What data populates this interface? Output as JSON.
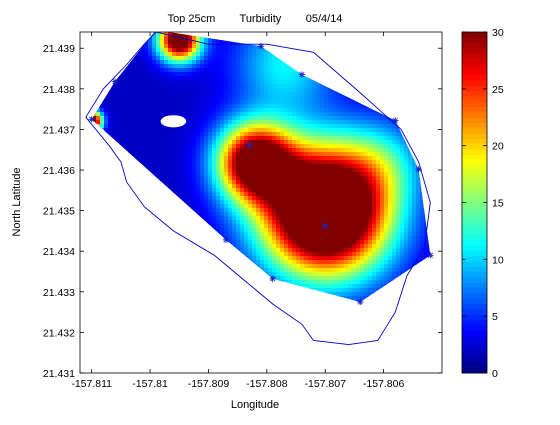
{
  "chart_data": {
    "type": "heatmap",
    "title": "Top 25cm        Turbidity        05/4/14",
    "xlabel": "Longitude",
    "ylabel": "North Latitude",
    "xlim": [
      -157.8112,
      -157.805
    ],
    "ylim": [
      21.431,
      21.4394
    ],
    "x_ticks": [
      {
        "value": -157.811,
        "label": "-157.811"
      },
      {
        "value": -157.81,
        "label": "-157.81"
      },
      {
        "value": -157.809,
        "label": "-157.809"
      },
      {
        "value": -157.808,
        "label": "-157.808"
      },
      {
        "value": -157.807,
        "label": "-157.807"
      },
      {
        "value": -157.806,
        "label": "-157.806"
      }
    ],
    "y_ticks": [
      {
        "value": 21.431,
        "label": "21.431"
      },
      {
        "value": 21.432,
        "label": "21.432"
      },
      {
        "value": 21.433,
        "label": "21.433"
      },
      {
        "value": 21.434,
        "label": "21.434"
      },
      {
        "value": 21.435,
        "label": "21.435"
      },
      {
        "value": 21.436,
        "label": "21.436"
      },
      {
        "value": 21.437,
        "label": "21.437"
      },
      {
        "value": 21.438,
        "label": "21.438"
      },
      {
        "value": 21.439,
        "label": "21.439"
      }
    ],
    "colorbar": {
      "range": [
        0,
        30
      ],
      "colormap": "jet",
      "ticks": [
        {
          "value": 0,
          "label": "0"
        },
        {
          "value": 5,
          "label": "5"
        },
        {
          "value": 10,
          "label": "10"
        },
        {
          "value": 15,
          "label": "15"
        },
        {
          "value": 20,
          "label": "20"
        },
        {
          "value": 25,
          "label": "25"
        },
        {
          "value": 30,
          "label": "30"
        }
      ]
    },
    "sample_points": [
      {
        "x": -157.8099,
        "y": 21.43945
      },
      {
        "x": -157.8081,
        "y": 21.43905
      },
      {
        "x": -157.8074,
        "y": 21.43835
      },
      {
        "x": -157.8058,
        "y": 21.43722
      },
      {
        "x": -157.8054,
        "y": 21.43602
      },
      {
        "x": -157.8052,
        "y": 21.4339
      },
      {
        "x": -157.8064,
        "y": 21.43275
      },
      {
        "x": -157.8079,
        "y": 21.43332
      },
      {
        "x": -157.8087,
        "y": 21.43428
      },
      {
        "x": -157.811,
        "y": 21.43725
      },
      {
        "x": -157.8106,
        "y": 21.43818
      },
      {
        "x": -157.8083,
        "y": 21.43662
      },
      {
        "x": -157.807,
        "y": 21.43462
      }
    ],
    "field_peaks": [
      {
        "x": -157.807,
        "y": 21.435,
        "value": 45,
        "spread": 0.00075
      },
      {
        "x": -157.8082,
        "y": 21.4362,
        "value": 32,
        "spread": 0.00045
      },
      {
        "x": -157.811,
        "y": 21.4372,
        "value": 36,
        "spread": 0.00012
      },
      {
        "x": -157.8095,
        "y": 21.4392,
        "value": 34,
        "spread": 0.00025
      },
      {
        "x": -157.8077,
        "y": 21.4386,
        "value": 9,
        "spread": 0.0006
      },
      {
        "x": -157.806,
        "y": 21.4362,
        "value": 6,
        "spread": 0.0005
      }
    ],
    "field_base": 2,
    "interpolation_hull": [
      [
        -157.8099,
        21.43945
      ],
      [
        -157.8081,
        21.43905
      ],
      [
        -157.8074,
        21.43835
      ],
      [
        -157.8058,
        21.43722
      ],
      [
        -157.8054,
        21.43602
      ],
      [
        -157.8052,
        21.4339
      ],
      [
        -157.8064,
        21.43275
      ],
      [
        -157.8079,
        21.43332
      ],
      [
        -157.8087,
        21.43428
      ],
      [
        -157.811,
        21.43725
      ],
      [
        -157.8106,
        21.43818
      ]
    ],
    "island_hole": {
      "x": -157.8096,
      "y": 21.4372,
      "rx": 0.00022,
      "ry": 0.00015
    },
    "shoreline": [
      [
        -157.8099,
        21.4394
      ],
      [
        -157.809,
        21.4391
      ],
      [
        -157.808,
        21.4391
      ],
      [
        -157.8072,
        21.4389
      ],
      [
        -157.8064,
        21.4379
      ],
      [
        -157.8057,
        21.437
      ],
      [
        -157.8054,
        21.4362
      ],
      [
        -157.8052,
        21.4352
      ],
      [
        -157.8053,
        21.4341
      ],
      [
        -157.8056,
        21.4334
      ],
      [
        -157.8058,
        21.4325
      ],
      [
        -157.8061,
        21.4318
      ],
      [
        -157.8066,
        21.4317
      ],
      [
        -157.8072,
        21.4318
      ],
      [
        -157.8074,
        21.4322
      ],
      [
        -157.8079,
        21.4327
      ],
      [
        -157.8084,
        21.4333
      ],
      [
        -157.8089,
        21.4339
      ],
      [
        -157.8096,
        21.4345
      ],
      [
        -157.8101,
        21.4351
      ],
      [
        -157.8104,
        21.4357
      ],
      [
        -157.8105,
        21.4362
      ],
      [
        -157.8107,
        21.4366
      ],
      [
        -157.8111,
        21.4373
      ],
      [
        -157.8108,
        21.438
      ],
      [
        -157.8104,
        21.4386
      ],
      [
        -157.8101,
        21.4391
      ],
      [
        -157.8099,
        21.4394
      ]
    ]
  }
}
